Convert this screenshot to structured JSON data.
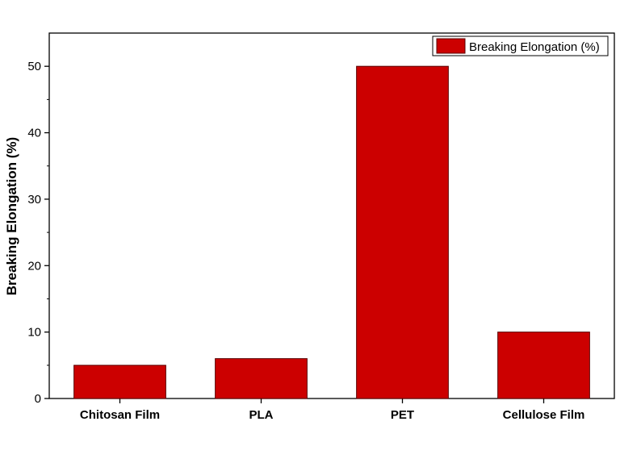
{
  "chart_data": {
    "type": "bar",
    "categories": [
      "Chitosan Film",
      "PLA",
      "PET",
      "Cellulose Film"
    ],
    "series": [
      {
        "name": "Breaking Elongation (%)",
        "values": [
          5,
          6,
          50,
          10
        ],
        "color": "#cc0000"
      }
    ],
    "title": "",
    "xlabel": "",
    "ylabel": "Breaking Elongation (%)",
    "ylim": [
      0,
      55
    ],
    "yticks": [
      0,
      10,
      20,
      30,
      40,
      50
    ],
    "grid": false,
    "legend_position": "top-right",
    "colors": {
      "bar_fill": "#cc0000",
      "bar_stroke": "#5a0000",
      "axis": "#000000"
    }
  }
}
